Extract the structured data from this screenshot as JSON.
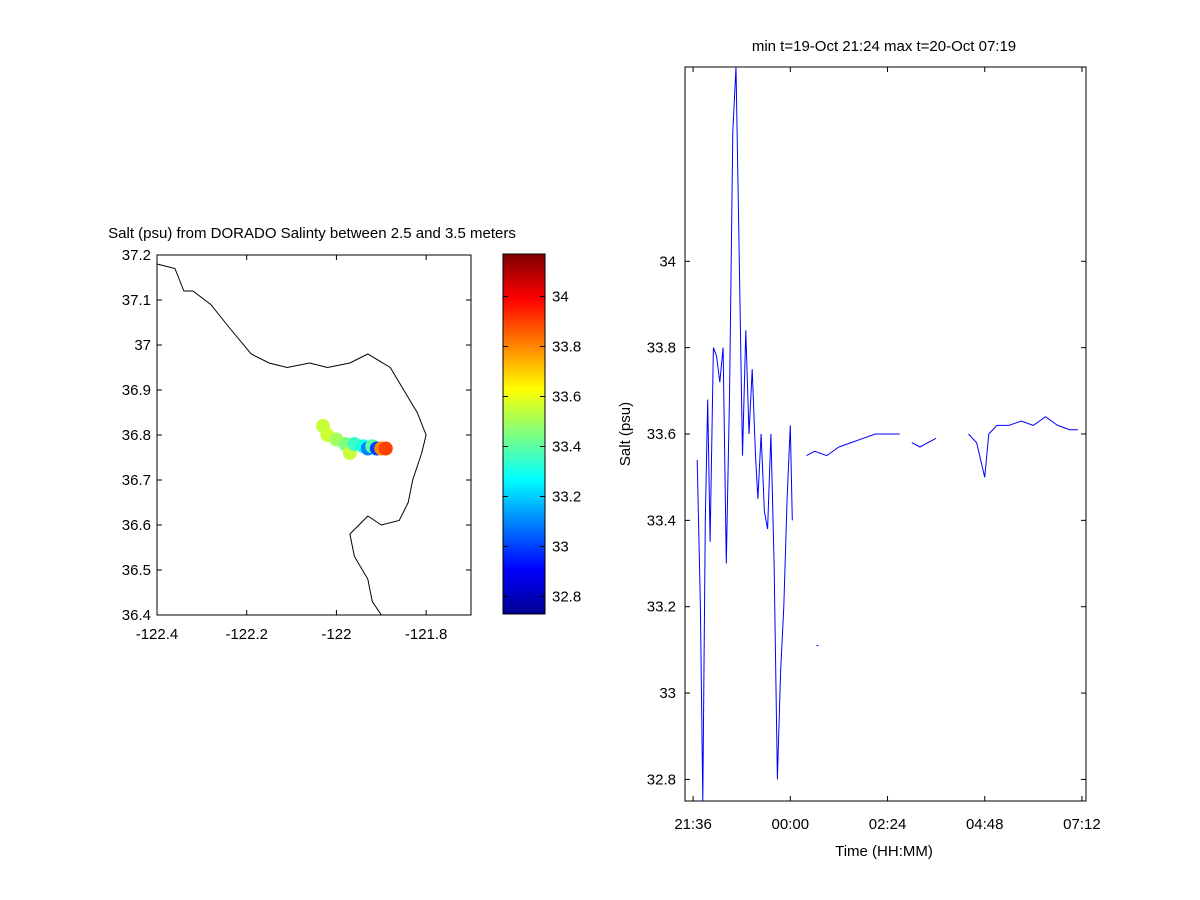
{
  "chart_data": [
    {
      "type": "scatter",
      "title": "Salt (psu) from DORADO Salinty between 2.5 and 3.5 meters",
      "xlabel": "",
      "ylabel": "",
      "xlim": [
        -122.4,
        -121.7
      ],
      "ylim": [
        36.4,
        37.2
      ],
      "x_ticks": [
        "-122.4",
        "-122.2",
        "-122",
        "-121.8"
      ],
      "y_ticks": [
        "36.4",
        "36.5",
        "36.6",
        "36.7",
        "36.8",
        "36.9",
        "37",
        "37.1",
        "37.2"
      ],
      "colorbar": {
        "range": [
          32.73,
          34.17
        ],
        "ticks": [
          "32.8",
          "33",
          "33.2",
          "33.4",
          "33.6",
          "33.8",
          "34"
        ],
        "colormap": "jet"
      },
      "coastline": [
        [
          -122.4,
          37.18
        ],
        [
          -122.36,
          37.17
        ],
        [
          -122.34,
          37.12
        ],
        [
          -122.32,
          37.12
        ],
        [
          -122.28,
          37.09
        ],
        [
          -122.24,
          37.04
        ],
        [
          -122.19,
          36.98
        ],
        [
          -122.15,
          36.96
        ],
        [
          -122.11,
          36.95
        ],
        [
          -122.06,
          36.96
        ],
        [
          -122.02,
          36.95
        ],
        [
          -121.97,
          36.96
        ],
        [
          -121.93,
          36.98
        ],
        [
          -121.88,
          36.95
        ],
        [
          -121.85,
          36.9
        ],
        [
          -121.82,
          36.85
        ],
        [
          -121.8,
          36.8
        ],
        [
          -121.81,
          36.76
        ],
        [
          -121.83,
          36.7
        ],
        [
          -121.84,
          36.65
        ],
        [
          -121.86,
          36.61
        ],
        [
          -121.9,
          36.6
        ],
        [
          -121.93,
          36.62
        ],
        [
          -121.95,
          36.6
        ],
        [
          -121.97,
          36.58
        ],
        [
          -121.96,
          36.53
        ],
        [
          -121.93,
          36.48
        ],
        [
          -121.92,
          36.43
        ],
        [
          -121.9,
          36.4
        ]
      ],
      "points": [
        {
          "lon": -122.03,
          "lat": 36.82,
          "salt": 33.55
        },
        {
          "lon": -122.02,
          "lat": 36.8,
          "salt": 33.56
        },
        {
          "lon": -122.0,
          "lat": 36.79,
          "salt": 33.5
        },
        {
          "lon": -121.98,
          "lat": 36.78,
          "salt": 33.45
        },
        {
          "lon": -121.97,
          "lat": 36.76,
          "salt": 33.55
        },
        {
          "lon": -121.96,
          "lat": 36.78,
          "salt": 33.35
        },
        {
          "lon": -121.94,
          "lat": 36.775,
          "salt": 33.3
        },
        {
          "lon": -121.93,
          "lat": 36.77,
          "salt": 33.1
        },
        {
          "lon": -121.92,
          "lat": 36.775,
          "salt": 33.4
        },
        {
          "lon": -121.91,
          "lat": 36.77,
          "salt": 33.0
        },
        {
          "lon": -121.9,
          "lat": 36.77,
          "salt": 33.8
        },
        {
          "lon": -121.89,
          "lat": 36.77,
          "salt": 33.9
        }
      ]
    },
    {
      "type": "line",
      "title": "min t=19-Oct 21:24 max t=20-Oct 07:19",
      "xlabel": "Time (HH:MM)",
      "ylabel": "Salt (psu)",
      "xlim": [
        21.4,
        31.3
      ],
      "ylim": [
        32.75,
        34.45
      ],
      "x_ticks": [
        "21:36",
        "00:00",
        "02:24",
        "04:48",
        "07:12"
      ],
      "y_ticks": [
        "32.8",
        "33",
        "33.2",
        "33.4",
        "33.6",
        "33.8",
        "34"
      ],
      "line_color": "#0000ff",
      "series": [
        {
          "segments": [
            [
              [
                21.7,
                33.54
              ],
              [
                21.78,
                33.2
              ],
              [
                21.84,
                32.75
              ],
              [
                21.9,
                33.4
              ],
              [
                21.96,
                33.68
              ],
              [
                22.02,
                33.35
              ],
              [
                22.1,
                33.8
              ],
              [
                22.18,
                33.78
              ],
              [
                22.26,
                33.72
              ],
              [
                22.34,
                33.8
              ],
              [
                22.42,
                33.3
              ],
              [
                22.5,
                33.7
              ],
              [
                22.58,
                34.3
              ],
              [
                22.66,
                34.45
              ],
              [
                22.74,
                34.0
              ],
              [
                22.82,
                33.55
              ],
              [
                22.9,
                33.84
              ],
              [
                22.98,
                33.6
              ],
              [
                23.06,
                33.75
              ],
              [
                23.14,
                33.55
              ],
              [
                23.2,
                33.45
              ],
              [
                23.28,
                33.6
              ],
              [
                23.36,
                33.42
              ],
              [
                23.44,
                33.38
              ],
              [
                23.52,
                33.6
              ],
              [
                23.6,
                33.3
              ],
              [
                23.68,
                32.8
              ],
              [
                23.76,
                33.05
              ],
              [
                23.84,
                33.2
              ],
              [
                23.92,
                33.45
              ],
              [
                24.0,
                33.62
              ],
              [
                24.05,
                33.4
              ]
            ],
            [
              [
                24.4,
                33.55
              ],
              [
                24.6,
                33.56
              ],
              [
                24.9,
                33.55
              ],
              [
                25.2,
                33.57
              ],
              [
                25.5,
                33.58
              ],
              [
                25.8,
                33.59
              ],
              [
                26.1,
                33.6
              ],
              [
                26.4,
                33.6
              ],
              [
                26.7,
                33.6
              ]
            ],
            [
              [
                27.0,
                33.58
              ],
              [
                27.2,
                33.57
              ],
              [
                27.4,
                33.58
              ],
              [
                27.6,
                33.59
              ]
            ],
            [
              [
                28.4,
                33.6
              ],
              [
                28.6,
                33.58
              ],
              [
                28.8,
                33.5
              ],
              [
                28.9,
                33.6
              ],
              [
                29.1,
                33.62
              ],
              [
                29.4,
                33.62
              ],
              [
                29.7,
                33.63
              ],
              [
                30.0,
                33.62
              ],
              [
                30.3,
                33.64
              ],
              [
                30.6,
                33.62
              ],
              [
                30.9,
                33.61
              ],
              [
                31.1,
                33.61
              ]
            ]
          ],
          "isolated_points": [
            [
              24.67,
              33.11
            ]
          ]
        }
      ]
    }
  ]
}
